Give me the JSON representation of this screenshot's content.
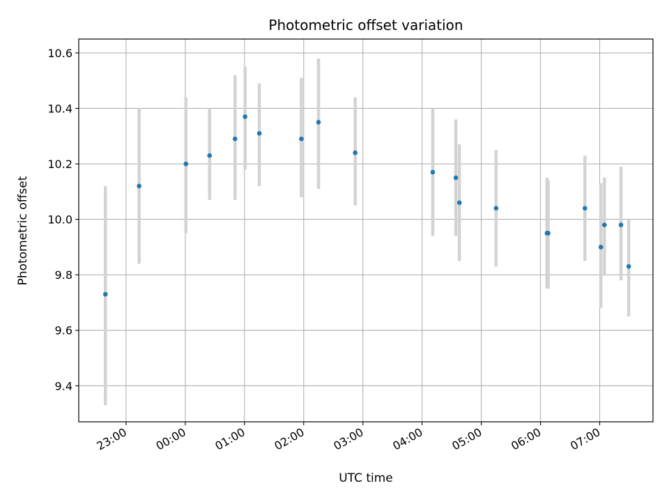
{
  "chart_data": {
    "type": "scatter",
    "title": "Photometric offset variation",
    "xlabel": "UTC time",
    "ylabel": "Photometric offset",
    "x_unit": "hours (UTC, continuous across midnight; 24 = 00:00)",
    "xlim": [
      22.2,
      31.9
    ],
    "ylim": [
      9.27,
      10.65
    ],
    "grid": true,
    "xtick_values": [
      23,
      24,
      25,
      26,
      27,
      28,
      29,
      30,
      31
    ],
    "xtick_labels": [
      "23:00",
      "00:00",
      "01:00",
      "02:00",
      "03:00",
      "04:00",
      "05:00",
      "06:00",
      "07:00"
    ],
    "ytick_values": [
      9.4,
      9.6,
      9.8,
      10.0,
      10.2,
      10.4,
      10.6
    ],
    "ytick_labels": [
      "9.4",
      "9.6",
      "9.8",
      "10.0",
      "10.2",
      "10.4",
      "10.6"
    ],
    "point_color": "#1f77b4",
    "errorbar_color": "#d3d3d3",
    "points": [
      {
        "x": 22.65,
        "y": 9.73,
        "ylow": 9.33,
        "yhigh": 10.12
      },
      {
        "x": 23.22,
        "y": 10.12,
        "ylow": 9.84,
        "yhigh": 10.4
      },
      {
        "x": 24.01,
        "y": 10.2,
        "ylow": 9.95,
        "yhigh": 10.44
      },
      {
        "x": 24.41,
        "y": 10.23,
        "ylow": 10.07,
        "yhigh": 10.4
      },
      {
        "x": 24.84,
        "y": 10.29,
        "ylow": 10.07,
        "yhigh": 10.52
      },
      {
        "x": 25.01,
        "y": 10.37,
        "ylow": 10.18,
        "yhigh": 10.55
      },
      {
        "x": 25.25,
        "y": 10.31,
        "ylow": 10.12,
        "yhigh": 10.49
      },
      {
        "x": 25.96,
        "y": 10.29,
        "ylow": 10.08,
        "yhigh": 10.51
      },
      {
        "x": 26.25,
        "y": 10.35,
        "ylow": 10.11,
        "yhigh": 10.58
      },
      {
        "x": 26.87,
        "y": 10.24,
        "ylow": 10.05,
        "yhigh": 10.44
      },
      {
        "x": 28.18,
        "y": 10.17,
        "ylow": 9.94,
        "yhigh": 10.4
      },
      {
        "x": 28.57,
        "y": 10.15,
        "ylow": 9.94,
        "yhigh": 10.36
      },
      {
        "x": 28.63,
        "y": 10.06,
        "ylow": 9.85,
        "yhigh": 10.27
      },
      {
        "x": 29.25,
        "y": 10.04,
        "ylow": 9.83,
        "yhigh": 10.25
      },
      {
        "x": 30.11,
        "y": 9.95,
        "ylow": 9.75,
        "yhigh": 10.15
      },
      {
        "x": 30.13,
        "y": 9.95,
        "ylow": 9.75,
        "yhigh": 10.14
      },
      {
        "x": 30.75,
        "y": 10.04,
        "ylow": 9.85,
        "yhigh": 10.23
      },
      {
        "x": 31.02,
        "y": 9.9,
        "ylow": 9.68,
        "yhigh": 10.13
      },
      {
        "x": 31.08,
        "y": 9.98,
        "ylow": 9.8,
        "yhigh": 10.15
      },
      {
        "x": 31.36,
        "y": 9.98,
        "ylow": 9.78,
        "yhigh": 10.19
      },
      {
        "x": 31.49,
        "y": 9.83,
        "ylow": 9.65,
        "yhigh": 10.0
      }
    ]
  }
}
